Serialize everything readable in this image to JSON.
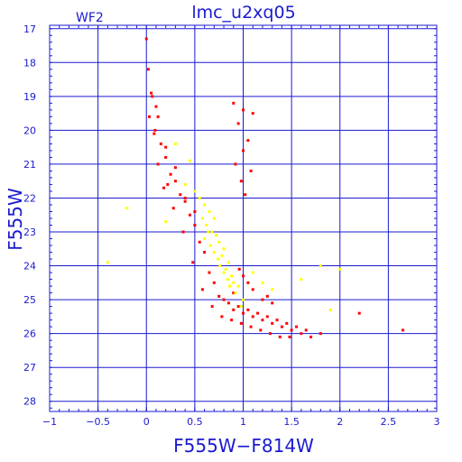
{
  "chart_data": {
    "type": "scatter",
    "title": "lmc_u2xq05",
    "subtitle": "WF2",
    "xlabel": "F555W−F814W",
    "ylabel": "F555W",
    "xlim": [
      -1,
      3
    ],
    "ylim": [
      28.3,
      16.9
    ],
    "y_inverted": true,
    "grid": true,
    "x_ticks": [
      -1,
      -0.5,
      0,
      0.5,
      1,
      1.5,
      2,
      2.5,
      3
    ],
    "x_tick_labels": [
      "−1",
      "−0.5",
      "0",
      "0.5",
      "1",
      "1.5",
      "2",
      "2.5",
      "3"
    ],
    "y_ticks": [
      17,
      18,
      19,
      20,
      21,
      22,
      23,
      24,
      25,
      26,
      27,
      28
    ],
    "y_tick_labels": [
      "17",
      "18",
      "19",
      "20",
      "21",
      "22",
      "23",
      "24",
      "25",
      "26",
      "27",
      "28"
    ],
    "colors": {
      "axis": "#1a1ad0",
      "grid": "#1a1ad0"
    },
    "series": [
      {
        "color": "#ff0000",
        "x": [
          0.0,
          0.02,
          0.05,
          0.1,
          0.03,
          0.08,
          0.15,
          0.2,
          0.12,
          0.25,
          0.3,
          0.18,
          0.35,
          0.4,
          0.28,
          0.45,
          0.5,
          0.38,
          0.55,
          0.6,
          0.48,
          0.65,
          0.7,
          0.58,
          0.75,
          0.8,
          0.68,
          0.85,
          0.9,
          0.78,
          0.95,
          1.0,
          0.88,
          1.05,
          1.1,
          0.98,
          1.15,
          1.2,
          1.08,
          1.25,
          1.3,
          1.18,
          1.35,
          1.4,
          1.28,
          1.45,
          1.5,
          1.38,
          1.55,
          1.6,
          1.48,
          1.65,
          1.7,
          0.9,
          1.0,
          1.1,
          0.95,
          1.05,
          1.0,
          0.92,
          1.08,
          0.98,
          1.02,
          0.06,
          0.12,
          0.09,
          0.2,
          0.3,
          0.22,
          0.4,
          0.5,
          0.9,
          1.2,
          1.3,
          1.25,
          1.1,
          1.05,
          1.0,
          0.96,
          2.65,
          1.8,
          2.2
        ],
        "y": [
          17.3,
          18.2,
          18.9,
          19.3,
          19.6,
          20.1,
          20.4,
          20.8,
          21.0,
          21.3,
          21.5,
          21.7,
          21.9,
          22.1,
          22.3,
          22.5,
          22.8,
          23.0,
          23.3,
          23.6,
          23.9,
          24.2,
          24.5,
          24.7,
          24.9,
          25.0,
          25.2,
          25.1,
          25.3,
          25.5,
          25.2,
          25.4,
          25.6,
          25.3,
          25.5,
          25.7,
          25.4,
          25.6,
          25.8,
          25.5,
          25.7,
          25.9,
          25.6,
          25.8,
          26.0,
          25.7,
          25.9,
          26.1,
          25.8,
          26.0,
          26.1,
          25.9,
          26.1,
          19.2,
          19.4,
          19.5,
          19.8,
          20.3,
          20.6,
          21.0,
          21.2,
          21.5,
          21.9,
          19.0,
          19.6,
          20.0,
          20.5,
          21.1,
          21.6,
          22.0,
          22.4,
          24.8,
          25.0,
          25.1,
          24.9,
          24.7,
          24.5,
          24.3,
          24.1,
          25.9,
          26.0,
          25.4
        ]
      },
      {
        "color": "#ffff00",
        "x": [
          0.4,
          0.5,
          0.55,
          0.6,
          0.65,
          0.7,
          0.62,
          0.68,
          0.72,
          0.75,
          0.8,
          0.78,
          0.85,
          0.82,
          0.88,
          0.9,
          0.95,
          0.92,
          1.0,
          0.98,
          0.6,
          0.66,
          0.7,
          0.74,
          0.76,
          0.8,
          0.84,
          0.86,
          0.58,
          0.64,
          0.2,
          -0.2,
          -0.4,
          1.3,
          1.6,
          1.8,
          2.0,
          1.9,
          0.3,
          0.45,
          1.1,
          1.2
        ],
        "y": [
          21.6,
          21.8,
          22.0,
          22.2,
          22.4,
          22.6,
          22.8,
          23.0,
          23.1,
          23.3,
          23.5,
          23.7,
          23.9,
          24.1,
          24.3,
          24.5,
          24.6,
          24.8,
          25.0,
          25.2,
          23.2,
          23.4,
          23.6,
          23.8,
          24.0,
          24.2,
          24.4,
          24.6,
          22.6,
          23.0,
          22.7,
          22.3,
          23.9,
          24.7,
          24.4,
          24.0,
          24.1,
          25.3,
          20.4,
          20.9,
          24.2,
          24.5
        ]
      }
    ]
  }
}
